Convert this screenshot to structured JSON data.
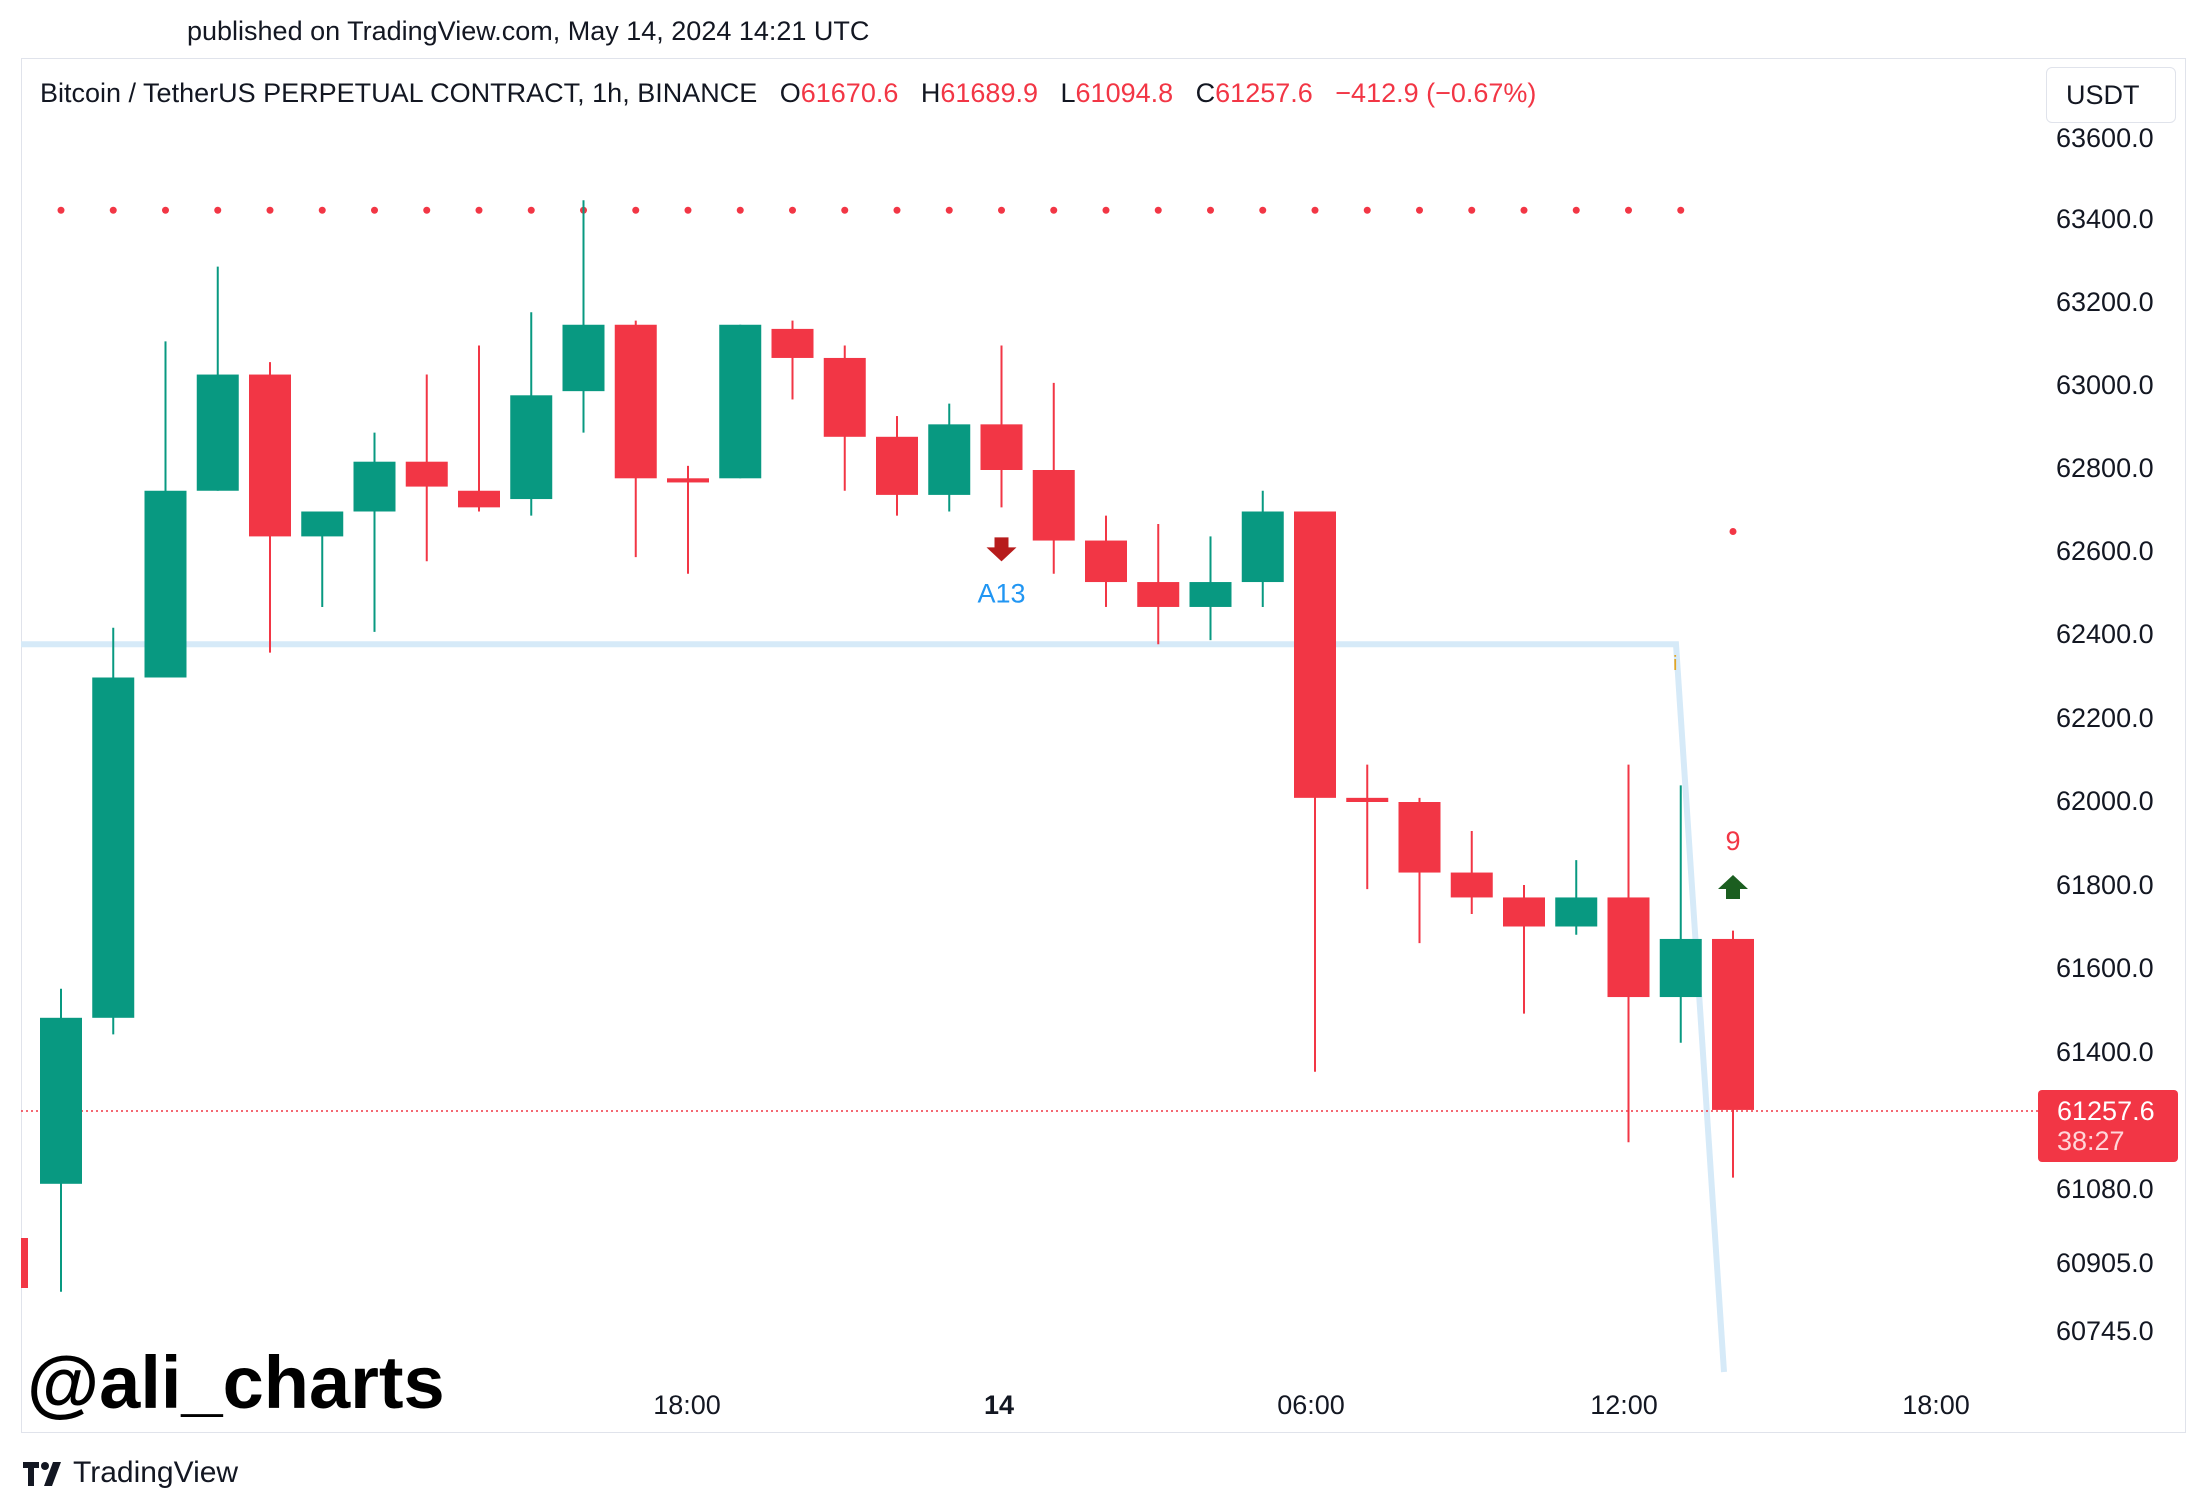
{
  "published": "published on TradingView.com, May 14, 2024 14:21 UTC",
  "legend": {
    "symbol": "Bitcoin / TetherUS PERPETUAL CONTRACT, 1h, BINANCE",
    "o_label": "O",
    "o_value": "61670.6",
    "h_label": "H",
    "h_value": "61689.9",
    "l_label": "L",
    "l_value": "61094.8",
    "c_label": "C",
    "c_value": "61257.6",
    "change": "−412.9 (−0.67%)"
  },
  "currency": "USDT",
  "watermark": "@ali_charts",
  "brand": "TradingView",
  "colors": {
    "up": "#089981",
    "down": "#f23645",
    "level_line": "#d6eaf8",
    "dots": "#f23645"
  },
  "chart_data": {
    "type": "candlestick",
    "y_axis_labels": [
      "63600.0",
      "63400.0",
      "63200.0",
      "63000.0",
      "62800.0",
      "62600.0",
      "62400.0",
      "62200.0",
      "62000.0",
      "61800.0",
      "61600.0",
      "61400.0",
      "61080.0",
      "60905.0",
      "60745.0"
    ],
    "x_axis_labels": [
      {
        "label": "18:00",
        "bold": false
      },
      {
        "label": "14",
        "bold": true
      },
      {
        "label": "06:00",
        "bold": false
      },
      {
        "label": "12:00",
        "bold": false
      },
      {
        "label": "18:00",
        "bold": false
      }
    ],
    "last_price": "61257.6",
    "countdown": "38:27",
    "candles": [
      {
        "o": 61080,
        "h": 61550,
        "l": 60820,
        "c": 61480
      },
      {
        "o": 61480,
        "h": 62420,
        "l": 61440,
        "c": 62300
      },
      {
        "o": 62300,
        "h": 63110,
        "l": 62300,
        "c": 62750
      },
      {
        "o": 62750,
        "h": 63290,
        "l": 62750,
        "c": 63030
      },
      {
        "o": 63030,
        "h": 63060,
        "l": 62360,
        "c": 62640
      },
      {
        "o": 62640,
        "h": 62700,
        "l": 62470,
        "c": 62700
      },
      {
        "o": 62700,
        "h": 62890,
        "l": 62410,
        "c": 62820
      },
      {
        "o": 62820,
        "h": 63030,
        "l": 62580,
        "c": 62760
      },
      {
        "o": 62750,
        "h": 63100,
        "l": 62700,
        "c": 62710
      },
      {
        "o": 62730,
        "h": 63180,
        "l": 62690,
        "c": 62980
      },
      {
        "o": 62990,
        "h": 63450,
        "l": 62890,
        "c": 63150
      },
      {
        "o": 63150,
        "h": 63160,
        "l": 62590,
        "c": 62780
      },
      {
        "o": 62780,
        "h": 62810,
        "l": 62550,
        "c": 62770
      },
      {
        "o": 62780,
        "h": 63150,
        "l": 62780,
        "c": 63150
      },
      {
        "o": 63140,
        "h": 63160,
        "l": 62970,
        "c": 63070
      },
      {
        "o": 63070,
        "h": 63100,
        "l": 62750,
        "c": 62880
      },
      {
        "o": 62880,
        "h": 62930,
        "l": 62690,
        "c": 62740
      },
      {
        "o": 62740,
        "h": 62960,
        "l": 62700,
        "c": 62910
      },
      {
        "o": 62910,
        "h": 63100,
        "l": 62710,
        "c": 62800
      },
      {
        "o": 62800,
        "h": 63010,
        "l": 62550,
        "c": 62630
      },
      {
        "o": 62630,
        "h": 62690,
        "l": 62470,
        "c": 62530
      },
      {
        "o": 62530,
        "h": 62670,
        "l": 62380,
        "c": 62470
      },
      {
        "o": 62470,
        "h": 62640,
        "l": 62390,
        "c": 62530
      },
      {
        "o": 62530,
        "h": 62750,
        "l": 62470,
        "c": 62700
      },
      {
        "o": 62700,
        "h": 62700,
        "l": 61350,
        "c": 62010
      },
      {
        "o": 62010,
        "h": 62090,
        "l": 61790,
        "c": 62000
      },
      {
        "o": 62000,
        "h": 62010,
        "l": 61660,
        "c": 61830
      },
      {
        "o": 61830,
        "h": 61930,
        "l": 61730,
        "c": 61770
      },
      {
        "o": 61770,
        "h": 61800,
        "l": 61490,
        "c": 61700
      },
      {
        "o": 61700,
        "h": 61860,
        "l": 61680,
        "c": 61770
      },
      {
        "o": 61770,
        "h": 62090,
        "l": 61180,
        "c": 61530
      },
      {
        "o": 61530,
        "h": 62040,
        "l": 61420,
        "c": 61670
      },
      {
        "o": 61670,
        "h": 61690,
        "l": 61095,
        "c": 61258
      }
    ],
    "markers": [
      {
        "type": "down-arrow",
        "candle": 18,
        "label": "A13"
      },
      {
        "type": "up-arrow",
        "candle": 32,
        "label": "9"
      }
    ],
    "dots_level": 63450,
    "extra_dot": {
      "candle": 32,
      "value": 62700
    },
    "support_line_value": 62380
  }
}
